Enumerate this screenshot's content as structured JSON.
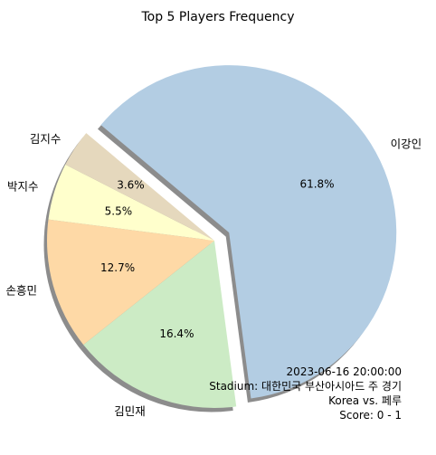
{
  "chart_data": {
    "type": "pie",
    "title": "Top 5 Players Frequency",
    "slices": [
      {
        "label": "이강인",
        "value": 61.8,
        "pct_label": "61.8%",
        "color": "#b3cde3",
        "exploded": true
      },
      {
        "label": "김민재",
        "value": 16.4,
        "pct_label": "16.4%",
        "color": "#ccebc5",
        "exploded": false
      },
      {
        "label": "손흥민",
        "value": 12.7,
        "pct_label": "12.7%",
        "color": "#fed9a6",
        "exploded": false
      },
      {
        "label": "박지수",
        "value": 5.5,
        "pct_label": "5.5%",
        "color": "#ffffcc",
        "exploded": false
      },
      {
        "label": "김지수",
        "value": 3.6,
        "pct_label": "3.6%",
        "color": "#e5d8bd",
        "exploded": false
      }
    ],
    "shadow": true,
    "start_angle_deg": 140,
    "direction": "clockwise"
  },
  "annotation": {
    "datetime": "2023-06-16 20:00:00",
    "stadium": "Stadium: 대한민국 부산아시아드 주 경기",
    "match": "Korea vs. 페루",
    "score": "Score: 0 - 1"
  }
}
